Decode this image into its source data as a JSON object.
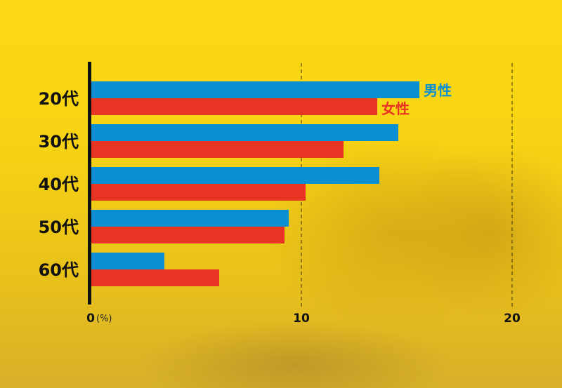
{
  "chart_data": {
    "type": "bar",
    "orientation": "horizontal",
    "categories": [
      "20代",
      "30代",
      "40代",
      "50代",
      "60代"
    ],
    "series": [
      {
        "name": "男性",
        "color": "#0b8fd3",
        "values": [
          15.6,
          14.6,
          13.7,
          9.4,
          3.5
        ]
      },
      {
        "name": "女性",
        "color": "#e83523",
        "values": [
          13.6,
          12.0,
          10.2,
          9.2,
          6.1
        ]
      }
    ],
    "xlim": [
      0,
      20
    ],
    "xticks": [
      "0",
      "10",
      "20"
    ],
    "unit_label": "(%)",
    "grid": "dashed vertical at 10 and 20",
    "legend": "inline labels beside the 20代 bars"
  }
}
